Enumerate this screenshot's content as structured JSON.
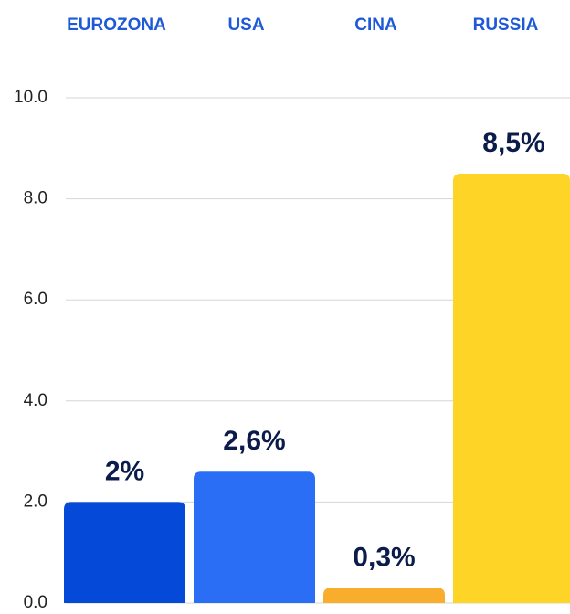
{
  "chart_data": {
    "type": "bar",
    "categories": [
      "EUROZONA",
      "USA",
      "CINA",
      "RUSSIA"
    ],
    "values": [
      2,
      2.6,
      0.3,
      8.5
    ],
    "value_labels": [
      "2%",
      "2,6%",
      "0,3%",
      "8,5%"
    ],
    "colors": [
      "#0449d8",
      "#2b6ef6",
      "#f8ae2c",
      "#fed426"
    ],
    "ylim": [
      0,
      10
    ],
    "yticks": [
      {
        "value": 0,
        "label": "0.0"
      },
      {
        "value": 2,
        "label": "2.0"
      },
      {
        "value": 4,
        "label": "4.0"
      },
      {
        "value": 6,
        "label": "6.0"
      },
      {
        "value": 8,
        "label": "8.0"
      },
      {
        "value": 10,
        "label": "10.0"
      }
    ],
    "grid": true
  }
}
